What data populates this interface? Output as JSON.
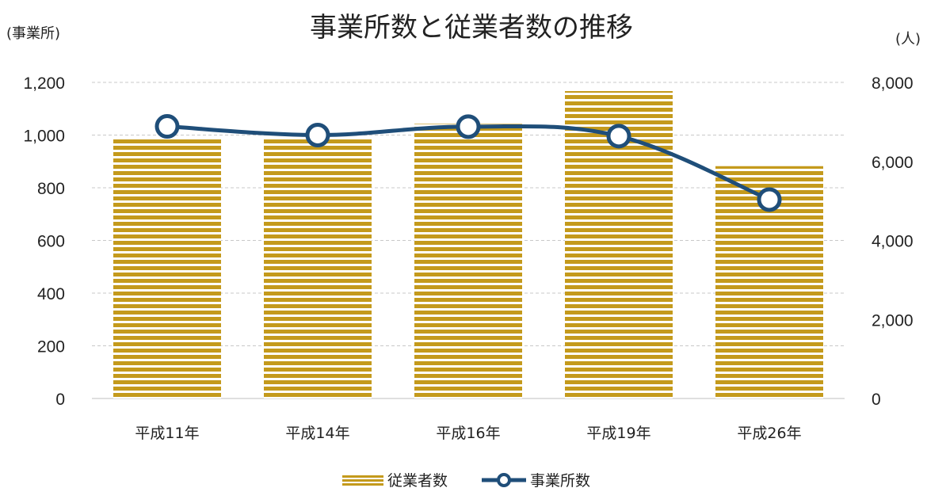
{
  "chart_data": {
    "type": "bar+line",
    "title": "事業所数と従業者数の推移",
    "left_axis_label": "(事業所)",
    "right_axis_label": "(人)",
    "categories": [
      "平成11年",
      "平成14年",
      "平成16年",
      "平成19年",
      "平成26年"
    ],
    "left_ylim": [
      0,
      1200
    ],
    "left_ticks": [
      0,
      200,
      400,
      600,
      800,
      1000,
      1200
    ],
    "left_tick_labels": [
      "0",
      "200",
      "400",
      "600",
      "800",
      "1,000",
      "1,200"
    ],
    "right_ylim": [
      0,
      8000
    ],
    "right_ticks": [
      0,
      2000,
      4000,
      6000,
      8000
    ],
    "right_tick_labels": [
      "0",
      "2,000",
      "4,000",
      "6,000",
      "8,000"
    ],
    "grid": true,
    "legend_position": "bottom",
    "series": [
      {
        "name": "従業者数",
        "kind": "bar",
        "axis": "right",
        "values": [
          6600,
          6600,
          6950,
          7780,
          5880
        ],
        "color": "#c49a1c"
      },
      {
        "name": "事業所数",
        "kind": "line",
        "axis": "left",
        "values": [
          1033,
          1000,
          1032,
          996,
          755
        ],
        "color": "#1f4e79"
      }
    ]
  }
}
